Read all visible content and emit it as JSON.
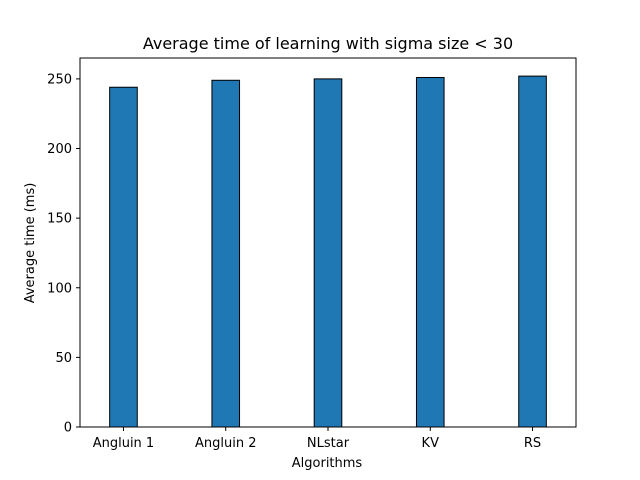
{
  "chart_data": {
    "type": "bar",
    "title": "Average time of learning with sigma size < 30",
    "xlabel": "Algorithms",
    "ylabel": "Average time (ms)",
    "categories": [
      "Angluin 1",
      "Angluin 2",
      "NLstar",
      "KV",
      "RS"
    ],
    "values": [
      244,
      249,
      250,
      251,
      252
    ],
    "ylim": [
      0,
      265
    ],
    "yticks": [
      0,
      50,
      100,
      150,
      200,
      250
    ],
    "grid": false,
    "legend": "none",
    "bar_color": "#1f77b4",
    "edge_color": "#000000"
  }
}
